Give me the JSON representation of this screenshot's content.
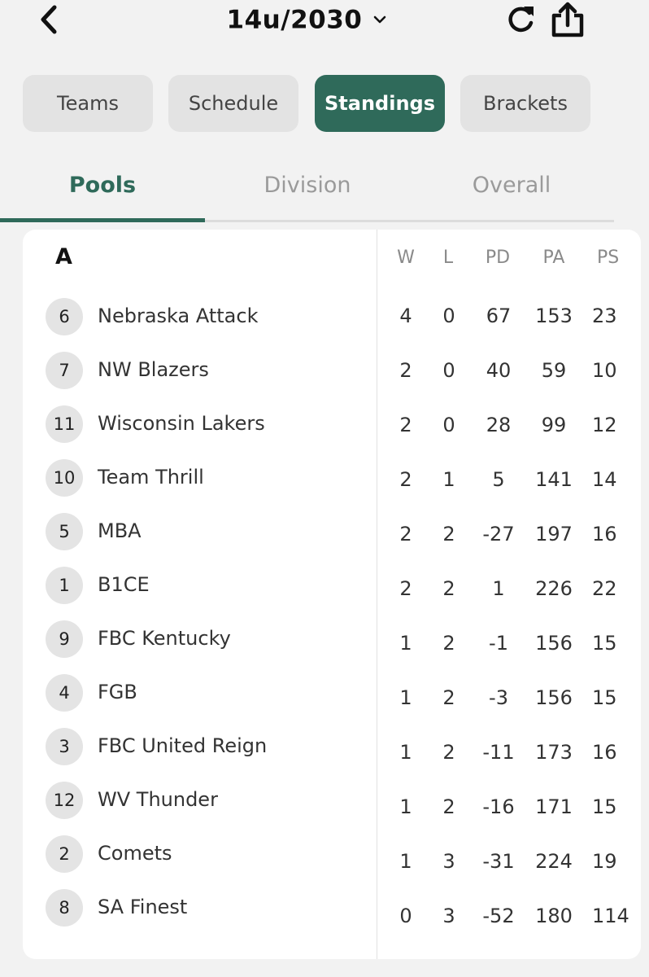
{
  "header": {
    "title": "14u/2030"
  },
  "segments": [
    "Teams",
    "Schedule",
    "Standings",
    "Brackets"
  ],
  "active_segment": "Standings",
  "subtabs": [
    "Pools",
    "Division",
    "Overall"
  ],
  "active_subtab": "Pools",
  "colors": {
    "accent": "#2f6a5a",
    "segment_bg": "#e3e3e3",
    "seed_bg": "#e4e4e4"
  },
  "pool": {
    "label": "A",
    "columns": [
      "W",
      "L",
      "PD",
      "PA",
      "PS"
    ],
    "rows": [
      {
        "seed": "6",
        "team": "Nebraska Attack",
        "W": "4",
        "L": "0",
        "PD": "67",
        "PA": "153",
        "PS": "23"
      },
      {
        "seed": "7",
        "team": "NW Blazers",
        "W": "2",
        "L": "0",
        "PD": "40",
        "PA": "59",
        "PS": "10"
      },
      {
        "seed": "11",
        "team": "Wisconsin Lakers",
        "W": "2",
        "L": "0",
        "PD": "28",
        "PA": "99",
        "PS": "12"
      },
      {
        "seed": "10",
        "team": "Team Thrill",
        "W": "2",
        "L": "1",
        "PD": "5",
        "PA": "141",
        "PS": "14"
      },
      {
        "seed": "5",
        "team": "MBA",
        "W": "2",
        "L": "2",
        "PD": "-27",
        "PA": "197",
        "PS": "16"
      },
      {
        "seed": "1",
        "team": "B1CE",
        "W": "2",
        "L": "2",
        "PD": "1",
        "PA": "226",
        "PS": "22"
      },
      {
        "seed": "9",
        "team": "FBC Kentucky",
        "W": "1",
        "L": "2",
        "PD": "-1",
        "PA": "156",
        "PS": "15"
      },
      {
        "seed": "4",
        "team": "FGB",
        "W": "1",
        "L": "2",
        "PD": "-3",
        "PA": "156",
        "PS": "15"
      },
      {
        "seed": "3",
        "team": "FBC United Reign",
        "W": "1",
        "L": "2",
        "PD": "-11",
        "PA": "173",
        "PS": "16"
      },
      {
        "seed": "12",
        "team": "WV Thunder",
        "W": "1",
        "L": "2",
        "PD": "-16",
        "PA": "171",
        "PS": "15"
      },
      {
        "seed": "2",
        "team": "Comets",
        "W": "1",
        "L": "3",
        "PD": "-31",
        "PA": "224",
        "PS": "19"
      },
      {
        "seed": "8",
        "team": "SA Finest",
        "W": "0",
        "L": "3",
        "PD": "-52",
        "PA": "180",
        "PS": "114"
      }
    ]
  }
}
